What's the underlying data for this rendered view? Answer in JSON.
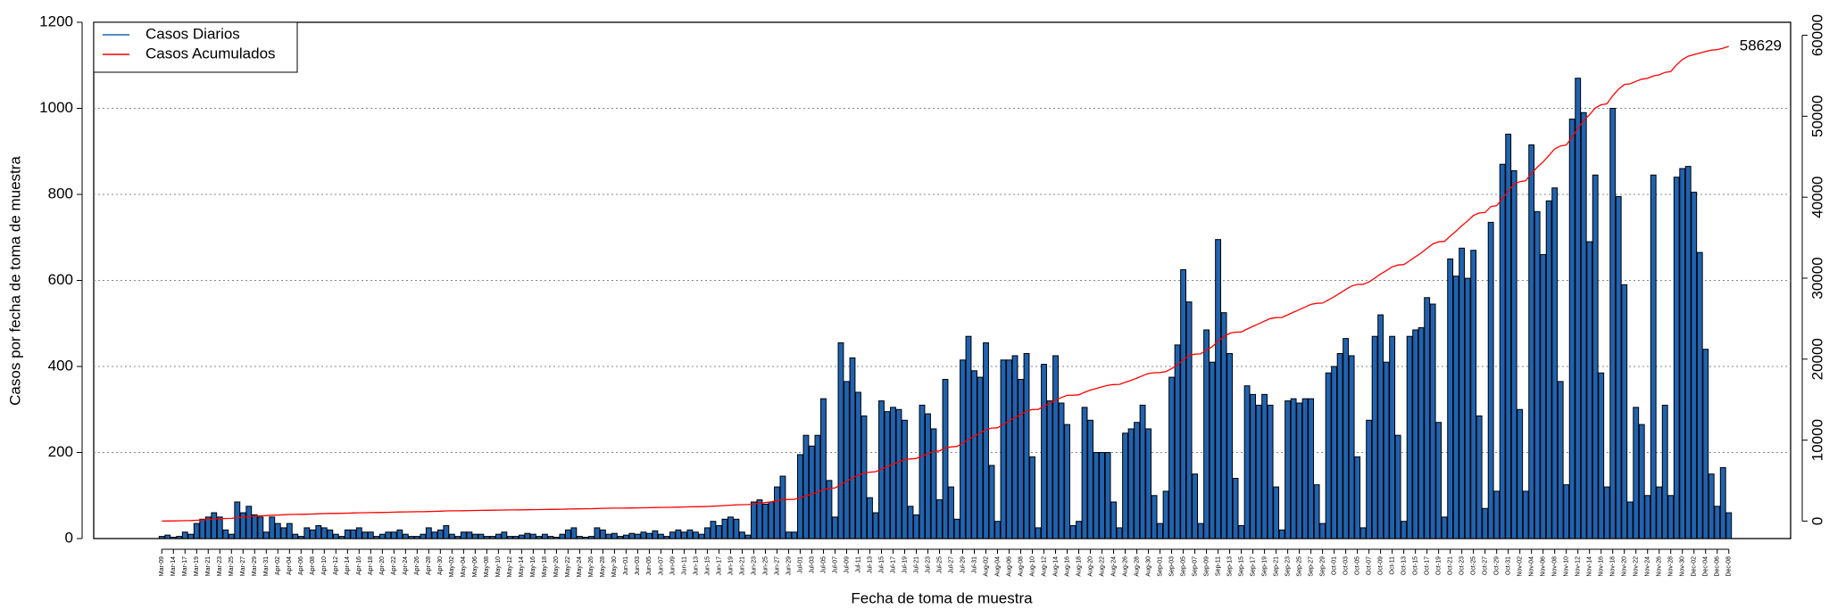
{
  "chart_data": {
    "type": "bar",
    "x_label": "Fecha de toma de muestra",
    "y_label": "Casos por fecha de toma de muestra",
    "legend": "top-left",
    "grid": true,
    "ylim": [
      0,
      1200
    ],
    "yticks": [
      0,
      200,
      400,
      600,
      800,
      1000,
      1200
    ],
    "y2lim": [
      -2160,
      61600
    ],
    "y2ticks": [
      0,
      10000,
      20000,
      30000,
      40000,
      50000,
      60000
    ],
    "categories": [
      "Mar-09",
      null,
      "Mar-14",
      null,
      "Mar-17",
      null,
      "Mar-19",
      null,
      "Mar-21",
      null,
      "Mar-23",
      null,
      "Mar-25",
      null,
      "Mar-27",
      null,
      "Mar-29",
      null,
      "Mar-31",
      null,
      "Apr-02",
      null,
      "Apr-04",
      null,
      "Apr-06",
      null,
      "Apr-08",
      null,
      "Apr-10",
      null,
      "Apr-12",
      null,
      "Apr-14",
      null,
      "Apr-16",
      null,
      "Apr-18",
      null,
      "Apr-20",
      null,
      "Apr-22",
      null,
      "Apr-24",
      null,
      "Apr-26",
      null,
      "Apr-28",
      null,
      "Apr-30",
      null,
      "May-02",
      null,
      "May-04",
      null,
      "May-06",
      null,
      "May-08",
      null,
      "May-10",
      null,
      "May-12",
      null,
      "May-14",
      null,
      "May-16",
      null,
      "May-18",
      null,
      "May-20",
      null,
      "May-22",
      null,
      "May-24",
      null,
      "May-26",
      null,
      "May-28",
      null,
      "May-30",
      null,
      "Jun-01",
      null,
      "Jun-03",
      null,
      "Jun-05",
      null,
      "Jun-07",
      null,
      "Jun-09",
      null,
      "Jun-11",
      null,
      "Jun-13",
      null,
      "Jun-15",
      null,
      "Jun-17",
      null,
      "Jun-19",
      null,
      "Jun-21",
      null,
      "Jun-23",
      null,
      "Jun-25",
      null,
      "Jun-27",
      null,
      "Jun-29",
      null,
      "Jul-01",
      null,
      "Jul-03",
      null,
      "Jul-05",
      null,
      "Jul-07",
      null,
      "Jul-09",
      null,
      "Jul-11",
      null,
      "Jul-13",
      null,
      "Jul-15",
      null,
      "Jul-17",
      null,
      "Jul-19",
      null,
      "Jul-21",
      null,
      "Jul-23",
      null,
      "Jul-25",
      null,
      "Jul-27",
      null,
      "Jul-29",
      null,
      "Jul-31",
      null,
      "Aug-02",
      null,
      "Aug-04",
      null,
      "Aug-06",
      null,
      "Aug-08",
      null,
      "Aug-10",
      null,
      "Aug-12",
      null,
      "Aug-14",
      null,
      "Aug-16",
      null,
      "Aug-18",
      null,
      "Aug-20",
      null,
      "Aug-22",
      null,
      "Aug-24",
      null,
      "Aug-26",
      null,
      "Aug-28",
      null,
      "Aug-30",
      null,
      "Sep-01",
      null,
      "Sep-03",
      null,
      "Sep-05",
      null,
      "Sep-07",
      null,
      "Sep-09",
      null,
      "Sep-11",
      null,
      "Sep-13",
      null,
      "Sep-15",
      null,
      "Sep-17",
      null,
      "Sep-19",
      null,
      "Sep-21",
      null,
      "Sep-23",
      null,
      "Sep-25",
      null,
      "Sep-27",
      null,
      "Sep-29",
      null,
      "Oct-01",
      null,
      "Oct-03",
      null,
      "Oct-05",
      null,
      "Oct-07",
      null,
      "Oct-09",
      null,
      "Oct-11",
      null,
      "Oct-13",
      null,
      "Oct-15",
      null,
      "Oct-17",
      null,
      "Oct-19",
      null,
      "Oct-21",
      null,
      "Oct-23",
      null,
      "Oct-25",
      null,
      "Oct-27",
      null,
      "Oct-29",
      null,
      "Oct-31",
      null,
      "Nov-02",
      null,
      "Nov-04",
      null,
      "Nov-06",
      null,
      "Nov-08",
      null,
      "Nov-10",
      null,
      "Nov-12",
      null,
      "Nov-14",
      null,
      "Nov-16",
      null,
      "Nov-18",
      null,
      "Nov-20",
      null,
      "Nov-22",
      null,
      "Nov-24",
      null,
      "Nov-26",
      null,
      "Nov-28",
      null,
      "Nov-30",
      null,
      "Dec-02",
      null,
      "Dec-04",
      null,
      "Dec-06",
      null,
      "Dec-08"
    ],
    "series": [
      {
        "name": "Casos Diarios",
        "type": "bar",
        "color": "#1f63b0",
        "values": [
          5,
          8,
          3,
          5,
          15,
          10,
          35,
          45,
          50,
          60,
          50,
          20,
          10,
          85,
          60,
          75,
          55,
          50,
          15,
          50,
          35,
          25,
          35,
          10,
          5,
          25,
          20,
          30,
          25,
          20,
          10,
          5,
          20,
          20,
          25,
          15,
          15,
          5,
          10,
          15,
          15,
          20,
          10,
          5,
          5,
          10,
          25,
          15,
          20,
          30,
          10,
          5,
          15,
          15,
          10,
          10,
          5,
          5,
          10,
          15,
          5,
          5,
          8,
          12,
          10,
          5,
          10,
          5,
          3,
          10,
          20,
          25,
          5,
          3,
          5,
          25,
          20,
          10,
          12,
          5,
          8,
          12,
          10,
          15,
          12,
          18,
          10,
          5,
          15,
          20,
          15,
          20,
          15,
          10,
          25,
          40,
          30,
          45,
          50,
          45,
          15,
          8,
          85,
          90,
          80,
          85,
          120,
          145,
          15,
          15,
          195,
          240,
          215,
          240,
          325,
          135,
          50,
          455,
          365,
          420,
          340,
          285,
          95,
          60,
          320,
          295,
          305,
          300,
          275,
          75,
          55,
          310,
          290,
          255,
          90,
          370,
          120,
          45,
          415,
          470,
          390,
          375,
          455,
          170,
          40,
          415,
          415,
          425,
          370,
          430,
          190,
          25,
          405,
          320,
          425,
          315,
          265,
          30,
          40,
          305,
          275,
          200,
          200,
          200,
          85,
          25,
          245,
          255,
          270,
          310,
          255,
          100,
          35,
          110,
          375,
          450,
          625,
          550,
          150,
          35,
          485,
          410,
          695,
          525,
          430,
          140,
          30,
          355,
          335,
          310,
          335,
          310,
          120,
          20,
          320,
          325,
          315,
          325,
          325,
          125,
          35,
          385,
          400,
          430,
          465,
          425,
          190,
          25,
          275,
          470,
          520,
          410,
          470,
          240,
          40,
          470,
          485,
          490,
          560,
          545,
          270,
          50,
          650,
          610,
          675,
          605,
          670,
          285,
          70,
          735,
          110,
          870,
          940,
          855,
          300,
          110,
          915,
          760,
          660,
          785,
          815,
          365,
          125,
          975,
          1070,
          990,
          690,
          845,
          385,
          120,
          1000,
          795,
          590,
          85,
          305,
          265,
          100,
          845,
          120,
          310,
          100,
          840,
          860,
          865,
          805,
          665,
          440,
          150,
          75,
          165,
          60
        ]
      },
      {
        "name": "Casos Acumulados",
        "type": "line",
        "axis": "y2",
        "color": "#ff0000",
        "values": [
          0,
          10,
          20,
          30,
          50,
          60,
          100,
          140,
          190,
          250,
          300,
          320,
          330,
          420,
          480,
          550,
          600,
          650,
          670,
          720,
          750,
          780,
          810,
          820,
          830,
          850,
          870,
          900,
          920,
          940,
          950,
          960,
          980,
          1000,
          1020,
          1030,
          1050,
          1060,
          1070,
          1080,
          1100,
          1120,
          1130,
          1140,
          1150,
          1160,
          1180,
          1200,
          1220,
          1250,
          1260,
          1270,
          1280,
          1300,
          1310,
          1320,
          1330,
          1340,
          1350,
          1360,
          1370,
          1380,
          1390,
          1400,
          1410,
          1420,
          1430,
          1440,
          1450,
          1460,
          1480,
          1500,
          1510,
          1520,
          1530,
          1550,
          1570,
          1580,
          1590,
          1600,
          1610,
          1620,
          1630,
          1640,
          1650,
          1670,
          1680,
          1690,
          1700,
          1720,
          1740,
          1760,
          1770,
          1780,
          1800,
          1840,
          1870,
          1910,
          1960,
          2010,
          2030,
          2040,
          2120,
          2210,
          2290,
          2380,
          2500,
          2650,
          2660,
          2680,
          2880,
          3120,
          3330,
          3570,
          3900,
          4030,
          4080,
          4540,
          4900,
          5320,
          5660,
          5950,
          6040,
          6100,
          6420,
          6720,
          7020,
          7320,
          7600,
          7670,
          7730,
          8040,
          8330,
          8580,
          8670,
          9040,
          9160,
          9210,
          9620,
          10090,
          10480,
          10860,
          11310,
          11480,
          11520,
          11940,
          12350,
          12780,
          13150,
          13580,
          13770,
          13790,
          14200,
          14520,
          14940,
          15260,
          15520,
          15550,
          15590,
          15900,
          16170,
          16370,
          16570,
          16770,
          16860,
          16880,
          17130,
          17380,
          17650,
          17960,
          18220,
          18320,
          18350,
          18460,
          18840,
          19290,
          19910,
          20460,
          20610,
          20650,
          21130,
          21540,
          22240,
          22760,
          23190,
          23330,
          23360,
          23720,
          24050,
          24360,
          24700,
          25010,
          25130,
          25150,
          25470,
          25800,
          26110,
          26440,
          26760,
          26890,
          26920,
          27310,
          27710,
          28140,
          28600,
          29030,
          29220,
          29240,
          29520,
          29990,
          30510,
          30920,
          31390,
          31630,
          31670,
          32140,
          32630,
          33120,
          33680,
          34220,
          34490,
          34540,
          35190,
          35800,
          36480,
          37080,
          37750,
          38040,
          38110,
          38840,
          38950,
          39820,
          40760,
          41620,
          41920,
          42030,
          42940,
          43700,
          44360,
          45150,
          45960,
          46330,
          46450,
          47430,
          48500,
          49490,
          50180,
          51030,
          51410,
          51530,
          52530,
          53330,
          53920,
          54000,
          54310,
          54570,
          54670,
          54980,
          55100,
          55410,
          55510,
          56350,
          57000,
          57400,
          57600,
          57800,
          58000,
          58150,
          58230,
          58400,
          58629
        ]
      }
    ]
  }
}
